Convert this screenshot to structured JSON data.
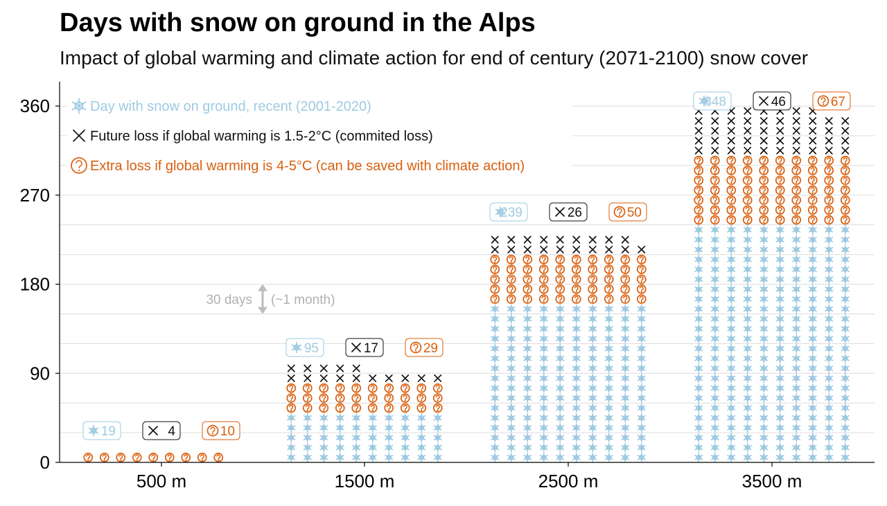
{
  "title": "Days with snow on ground in the Alps",
  "subtitle": "Impact of global warming and climate action for end of century (2071-2100) snow cover",
  "chart_data": {
    "type": "bar",
    "title": "Days with snow on ground in the Alps",
    "subtitle": "Impact of global warming and climate action for end of century (2071-2100) snow cover",
    "categories": [
      "500 m",
      "1500 m",
      "2500 m",
      "3500 m"
    ],
    "ylim": [
      0,
      380
    ],
    "yticks": [
      0,
      90,
      180,
      270,
      360
    ],
    "grid": true,
    "legend_position": "top-left",
    "icon_days": 10,
    "columns_per_group": 10,
    "series": [
      {
        "name": "Day with snow on ground, recent (2001-2020)",
        "label_prefix": "❄",
        "values": [
          19,
          95,
          239,
          348
        ],
        "color": "#9ecae1",
        "icon": "snowflake-icon"
      },
      {
        "name": "Future loss if global warming is 1.5-2°C (commited loss)",
        "label_prefix": "✕",
        "values": [
          4,
          17,
          26,
          46
        ],
        "color": "#111111",
        "icon": "cross-icon"
      },
      {
        "name": "Extra loss if global warming is 4-5°C (can be saved with climate action)",
        "label_prefix": "?",
        "values": [
          10,
          29,
          50,
          67
        ],
        "color": "#d95f0e",
        "icon": "question-circle-icon"
      }
    ],
    "column_tops": [
      [
        16,
        16,
        16,
        16,
        16,
        16,
        16,
        16,
        16,
        6
      ],
      [
        100,
        100,
        100,
        100,
        100,
        89,
        89,
        89,
        89,
        89
      ],
      [
        237,
        237,
        237,
        237,
        237,
        237,
        237,
        237,
        237,
        226
      ],
      [
        349,
        349,
        349,
        349,
        349,
        349,
        349,
        349,
        339,
        339
      ]
    ],
    "annotation": {
      "label": "30 days",
      "note": "(~1 month)",
      "span_days": 30,
      "center_value": 165
    }
  }
}
